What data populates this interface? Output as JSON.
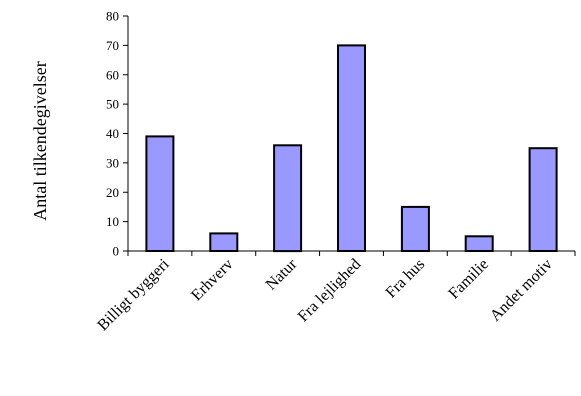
{
  "chart_data": {
    "type": "bar",
    "title": "",
    "xlabel": "",
    "ylabel": "Antal tilkendegivelser",
    "ylim": [
      0,
      80
    ],
    "yticks": [
      0,
      10,
      20,
      30,
      40,
      50,
      60,
      70,
      80
    ],
    "grid": false,
    "legend": "none",
    "categories": [
      "Billigt byggeri",
      "Erhverv",
      "Natur",
      "Fra lejlighed",
      "Fra hus",
      "Familie",
      "Andet motiv"
    ],
    "values": [
      39,
      6,
      36,
      70,
      15,
      5,
      35
    ],
    "colors": {
      "bar_fill": "#9999ff",
      "bar_stroke": "#000000",
      "axis": "#000000"
    }
  }
}
